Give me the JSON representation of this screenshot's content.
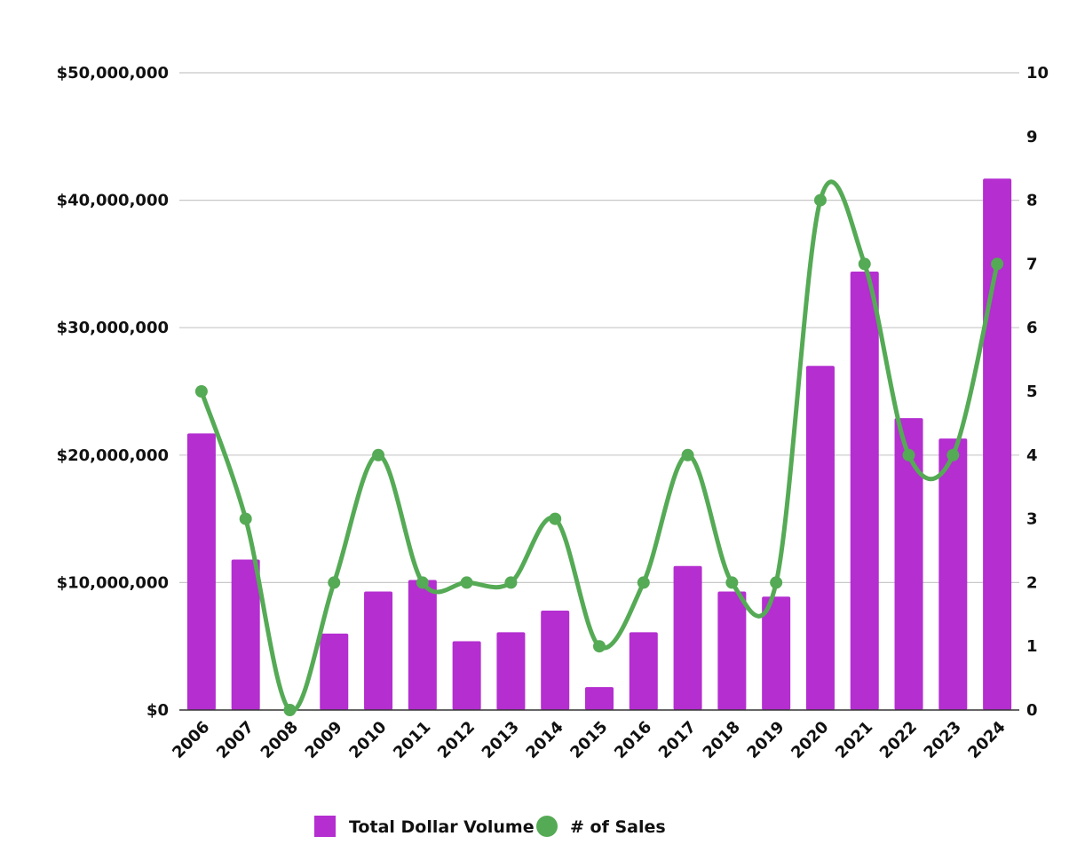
{
  "chart_data": {
    "type": "bar",
    "categories": [
      "2006",
      "2007",
      "2008",
      "2009",
      "2010",
      "2011",
      "2012",
      "2013",
      "2014",
      "2015",
      "2016",
      "2017",
      "2018",
      "2019",
      "2020",
      "2021",
      "2022",
      "2023",
      "2024"
    ],
    "series": [
      {
        "name": "Total Dollar Volume",
        "type": "bar",
        "axis": "left",
        "color": "#b42ed0",
        "values": [
          21700000,
          11800000,
          0,
          6000000,
          9300000,
          10200000,
          5400000,
          6100000,
          7800000,
          1800000,
          6100000,
          11300000,
          9300000,
          8900000,
          27000000,
          34400000,
          22900000,
          21300000,
          41700000
        ]
      },
      {
        "name": "# of Sales",
        "type": "line",
        "smooth": true,
        "axis": "right",
        "color": "#55aa55",
        "values": [
          5,
          3,
          0,
          2,
          4,
          2,
          2,
          2,
          3,
          1,
          2,
          4,
          2,
          2,
          8,
          7,
          4,
          4,
          7
        ]
      }
    ],
    "y_left": {
      "ylim": [
        0,
        50000000
      ],
      "ticks": [
        0,
        10000000,
        20000000,
        30000000,
        40000000,
        50000000
      ],
      "tick_labels": [
        "$0",
        "$10,000,000",
        "$20,000,000",
        "$30,000,000",
        "$40,000,000",
        "$50,000,000"
      ]
    },
    "y_right": {
      "ylim": [
        0,
        10
      ],
      "ticks": [
        0,
        1,
        2,
        3,
        4,
        5,
        6,
        7,
        8,
        9,
        10
      ],
      "tick_labels": [
        "0",
        "1",
        "2",
        "3",
        "4",
        "5",
        "6",
        "7",
        "8",
        "9",
        "10"
      ]
    },
    "grid": true,
    "legend_position": "bottom-center"
  },
  "legend": {
    "items": [
      {
        "label": "Total Dollar Volume",
        "shape": "square",
        "color": "#b42ed0"
      },
      {
        "label": "# of Sales",
        "shape": "circle",
        "color": "#55aa55"
      }
    ]
  }
}
